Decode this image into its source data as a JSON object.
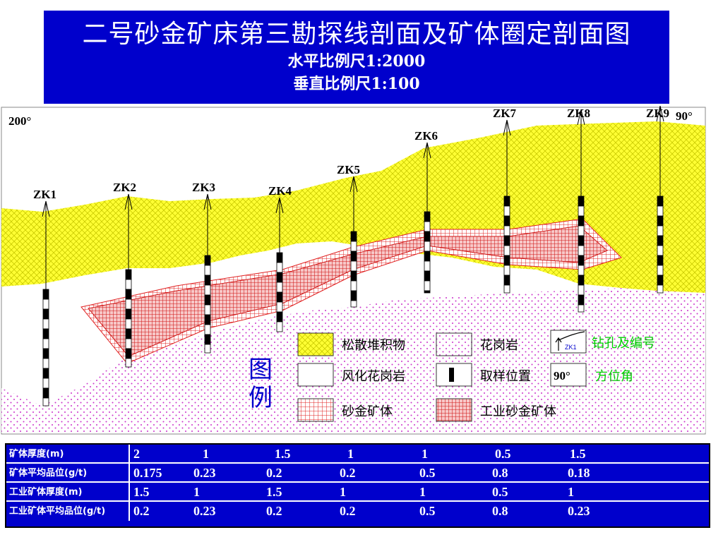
{
  "title": {
    "main": "二号砂金矿床第三勘探线剖面及矿体圈定剖面图",
    "hscale": "水平比例尺1:2000",
    "vscale": "垂直比例尺1:100"
  },
  "azimuth": {
    "left": "200°",
    "right": "90°"
  },
  "drillholes": [
    "ZK1",
    "ZK2",
    "ZK3",
    "ZK4",
    "ZK5",
    "ZK6",
    "ZK7",
    "ZK8",
    "ZK9"
  ],
  "legend": {
    "title": "图例",
    "items": [
      "松散堆积物",
      "花岗岩",
      "钻孔及编号",
      "风化花岗岩",
      "取样位置",
      "方位角",
      "砂金矿体",
      "工业砂金矿体"
    ],
    "drill_sample_label": "ZK1",
    "azimuth_sample": "90°"
  },
  "table": {
    "rows": [
      {
        "label": "矿体厚度(m)",
        "values": [
          "2",
          "1",
          "1.5",
          "1",
          "1",
          "0.5",
          "1.5"
        ]
      },
      {
        "label": "矿体平均品位(g/t)",
        "values": [
          "0.175",
          "0.23",
          "0.2",
          "0.2",
          "0.5",
          "0.8",
          "0.18"
        ]
      },
      {
        "label": "工业矿体厚度(m)",
        "values": [
          "1.5",
          "1",
          "1.5",
          "1",
          "1",
          "0.5",
          "1"
        ]
      },
      {
        "label": "工业矿体平均品位(g/t)",
        "values": [
          "0.2",
          "0.23",
          "0.2",
          "0.2",
          "0.5",
          "0.8",
          "0.23"
        ]
      }
    ]
  },
  "colors": {
    "title_bg": "#0000cc",
    "loose_deposit": "#ffff33",
    "granite_dots": "#cc33cc",
    "ore_hatch": "#e02020",
    "legend_green": "#00cc00",
    "legend_blue": "#0000cc"
  }
}
